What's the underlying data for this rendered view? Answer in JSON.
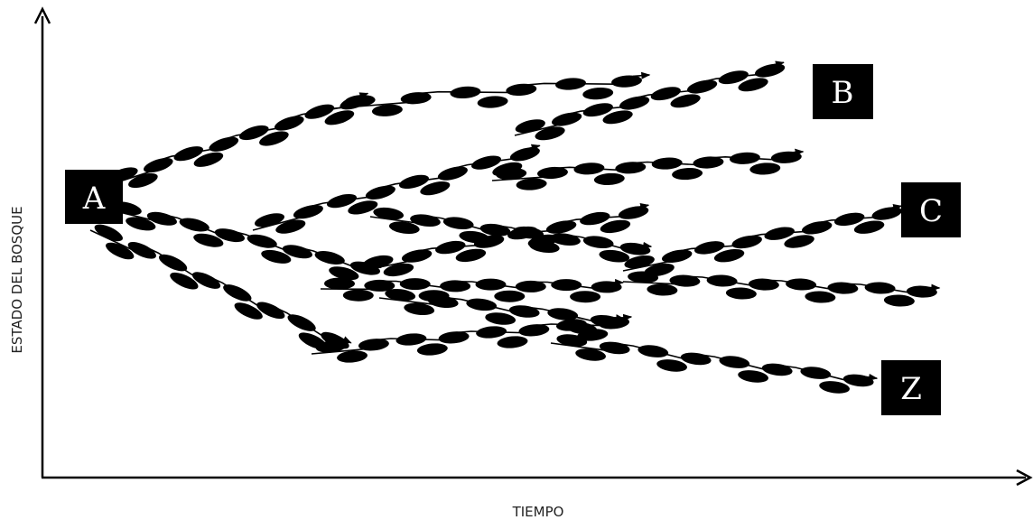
{
  "axes": {
    "x_label": "TIEMPO",
    "y_label": "ESTADO DEL BOSQUE"
  },
  "nodes": {
    "a": "A",
    "b": "B",
    "c": "C",
    "z": "Z"
  },
  "colors": {
    "ink": "#000000",
    "background": "#ffffff"
  }
}
